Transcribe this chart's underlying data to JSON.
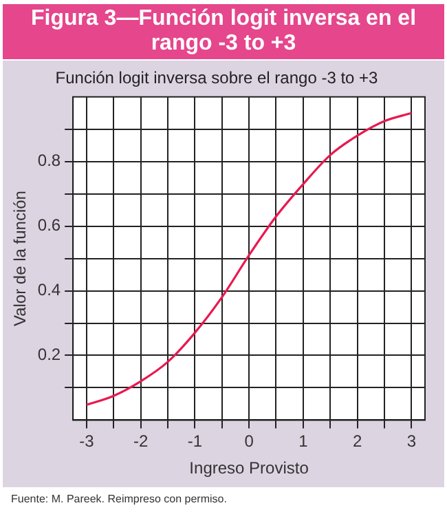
{
  "chart_data": {
    "type": "line",
    "title": "Figura 3—Función logit inversa en el rango -3 to +3",
    "subtitle": "Función logit inversa sobre el rango -3 to +3",
    "xlabel": "Ingreso Provisto",
    "ylabel": "Valor de la función",
    "annotations": [
      "Fuente:  M. Pareek. Reimpreso con permiso."
    ],
    "x": [
      -3,
      -2.5,
      -2,
      -1.5,
      -1,
      -0.5,
      0,
      0.5,
      1,
      1.5,
      2,
      2.5,
      3
    ],
    "series": [
      {
        "color": "#e8194f",
        "values": [
          0.047,
          0.075,
          0.12,
          0.18,
          0.27,
          0.38,
          0.51,
          0.63,
          0.73,
          0.82,
          0.88,
          0.925,
          0.95
        ]
      }
    ],
    "xlim": [
      -3.25,
      3.25
    ],
    "xticks": [
      -3,
      {
        "value": -2.5,
        "label": null
      },
      -2,
      {
        "value": -1.5,
        "label": null
      },
      -1,
      {
        "value": -0.5,
        "label": null
      },
      0,
      {
        "value": 0.5,
        "label": null
      },
      1,
      {
        "value": 1.5,
        "label": null
      },
      2,
      {
        "value": 2.5,
        "label": null
      },
      3
    ],
    "ylim": [
      0,
      1
    ],
    "yticks": [
      {
        "value": 0.1,
        "label": null
      },
      0.2,
      {
        "value": 0.3,
        "label": null
      },
      0.4,
      {
        "value": 0.5,
        "label": null
      },
      0.6,
      {
        "value": 0.7,
        "label": null
      },
      0.8,
      {
        "value": 0.9,
        "label": null
      }
    ],
    "grid": true,
    "legend": false,
    "marker": "none",
    "line_style": "solid"
  }
}
